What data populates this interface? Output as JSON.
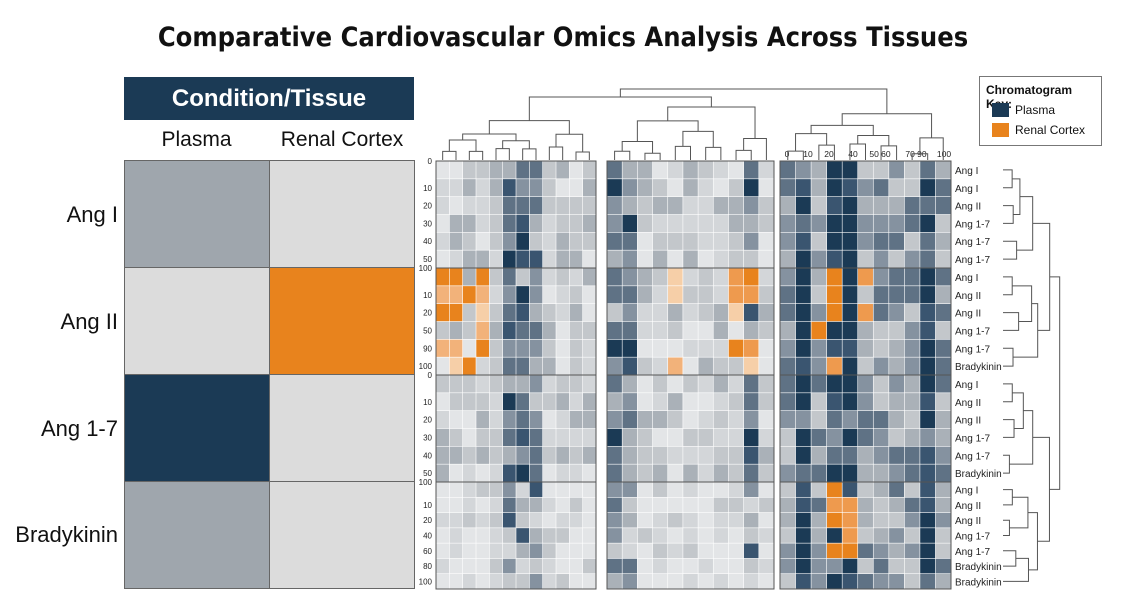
{
  "title": "Comparative Cardiovascular Omics Analysis Across Tissues",
  "left_table": {
    "header": "Condition/Tissue",
    "columns": [
      "Plasma",
      "Renal Cortex"
    ],
    "rows": [
      {
        "label": "Ang I",
        "cells": [
          "#9fa6ad",
          "#dcdcdc"
        ]
      },
      {
        "label": "Ang II",
        "cells": [
          "#dcdcdc",
          "#e8831d"
        ]
      },
      {
        "label": "Ang 1-7",
        "cells": [
          "#1b3a55",
          "#dcdcdc"
        ]
      },
      {
        "label": "Bradykinin",
        "cells": [
          "#9fa6ad",
          "#dcdcdc"
        ]
      }
    ]
  },
  "key": {
    "title": "Chromatogram Key:",
    "items": [
      {
        "label": "Plasma",
        "color": "#1b3a55"
      },
      {
        "label": "Renal Cortex",
        "color": "#e8831d"
      }
    ]
  },
  "colors": {
    "plasma": "#1b3a55",
    "renal_cortex": "#e8831d",
    "neutral_light": "#dcdcdc",
    "neutral_mid": "#9fa6ad"
  },
  "chart_data": {
    "type": "heatmap",
    "panels": 3,
    "top_axis_ticks_panel3": [
      "0",
      "10",
      "20",
      "40",
      "50 60",
      "70 90",
      "100"
    ],
    "row_axis_ticks": [
      [
        "0",
        "10",
        "20",
        "30",
        "40",
        "50"
      ],
      [
        "100",
        "10",
        "20",
        "50",
        "90",
        "100"
      ],
      [
        "0",
        "10",
        "20",
        "30",
        "40",
        "50"
      ],
      [
        "100",
        "10",
        "20",
        "40",
        "60",
        "80",
        "100"
      ]
    ],
    "row_labels": [
      [
        "Ang I",
        "Ang I",
        "Ang II",
        "Ang 1-7",
        "Ang 1-7",
        "Ang 1-7"
      ],
      [
        "Ang I",
        "Ang II",
        "Ang II",
        "Ang 1-7",
        "Ang 1-7",
        "Bradykinin"
      ],
      [
        "Ang I",
        "Ang II",
        "Ang II",
        "Ang 1-7",
        "Ang 1-7",
        "Bradykinin"
      ],
      [
        "Ang I",
        "Ang II",
        "Ang II",
        "Ang 1-7",
        "Ang 1-7",
        "Bradykinin",
        "Bradykinin"
      ]
    ]
  }
}
